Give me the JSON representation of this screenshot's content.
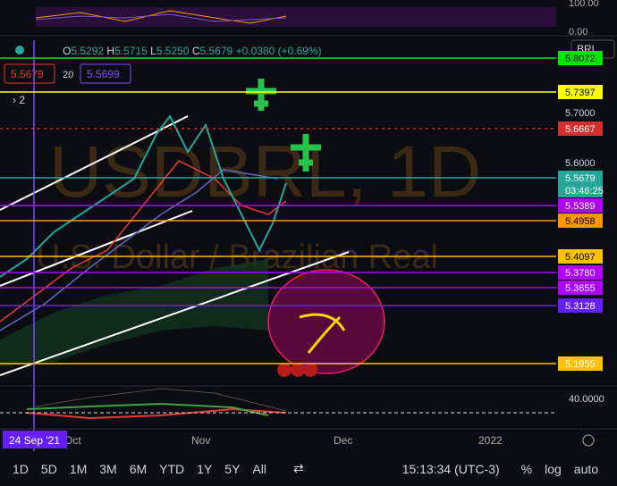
{
  "header": {
    "symbol_menu": "BRL",
    "ohlc": {
      "o_label": "O",
      "o": "5.5292",
      "h_label": "H",
      "h": "5.5715",
      "l_label": "L",
      "l": "5.5250",
      "c_label": "C",
      "c": "5.5679",
      "change": "+0.0380 (+0.69%)"
    },
    "bid": "5.5679",
    "spread": "20",
    "ask": "5.5699",
    "indicator_count": "2"
  },
  "watermark": {
    "symbol": "USDBRL, 1D",
    "description": "U.S. Dollar / Brazilian Real"
  },
  "oscillator_axis": [
    "100.00",
    "0.00"
  ],
  "price_axis": [
    {
      "text": "5.8072",
      "color": "#00e600"
    },
    {
      "text": "5.7397",
      "color": "#ffff00"
    },
    {
      "text": "5.7000",
      "color": null
    },
    {
      "text": "5.6667",
      "color": "#d32f2f"
    },
    {
      "text": "5.6000",
      "color": null
    },
    {
      "text": "5.5679",
      "color": "#26a69a"
    },
    {
      "text": "5.5389",
      "color": "#b000ff"
    },
    {
      "text": "5.4958",
      "color": "#ff9800"
    },
    {
      "text": "5.4097",
      "color": "#ffc107"
    },
    {
      "text": "5.3780",
      "color": "#b000ff"
    },
    {
      "text": "5.3655",
      "color": "#b000ff"
    },
    {
      "text": "5.3128",
      "color": "#651fff"
    },
    {
      "text": "5.1955",
      "color": "#ffc107"
    }
  ],
  "countdown": "03:46:25",
  "lower_axis": "40.0000",
  "time_axis": {
    "crosshair": "24 Sep '21",
    "labels": [
      "Oct",
      "Nov",
      "Dec",
      "2022"
    ]
  },
  "toolbar": {
    "ranges": [
      "1D",
      "5D",
      "1M",
      "3M",
      "6M",
      "YTD",
      "1Y",
      "5Y",
      "All"
    ],
    "clock": "15:13:34 (UTC-3)",
    "options": [
      "%",
      "log",
      "auto"
    ]
  }
}
